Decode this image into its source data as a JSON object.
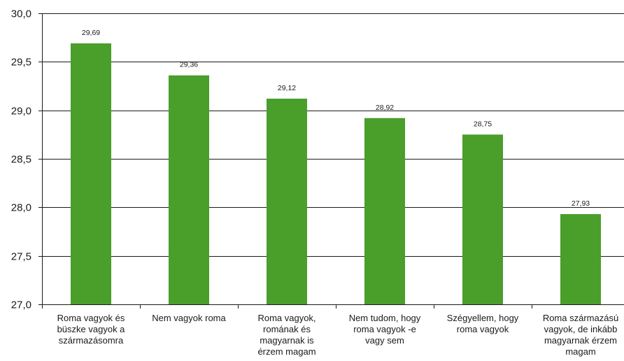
{
  "chart_data": {
    "type": "bar",
    "categories": [
      [
        "Roma vagyok és",
        "büszke vagyok a",
        "származásomra"
      ],
      [
        "Nem vagyok roma"
      ],
      [
        "Roma vagyok,",
        "romának és",
        "magyarnak is",
        "érzem magam"
      ],
      [
        "Nem tudom, hogy",
        "roma vagyok -e",
        "vagy sem"
      ],
      [
        "Szégyellem, hogy",
        "roma vagyok"
      ],
      [
        "Roma származású",
        "vagyok, de inkább",
        "magyarnak érzem",
        "magam"
      ]
    ],
    "values": [
      29.69,
      29.36,
      29.12,
      28.92,
      28.75,
      27.93
    ],
    "value_labels": [
      "29,69",
      "29,36",
      "29,12",
      "28,92",
      "28,75",
      "27,93"
    ],
    "ylim": [
      27.0,
      30.0
    ],
    "yticks": [
      27.0,
      27.5,
      28.0,
      28.5,
      29.0,
      29.5,
      30.0
    ],
    "ytick_labels": [
      "27,0",
      "27,5",
      "28,0",
      "28,5",
      "29,0",
      "29,5",
      "30,0"
    ],
    "grid": true,
    "legend": "none",
    "bar_color": "#4a9e2a",
    "grid_color": "#1a1a1a"
  }
}
